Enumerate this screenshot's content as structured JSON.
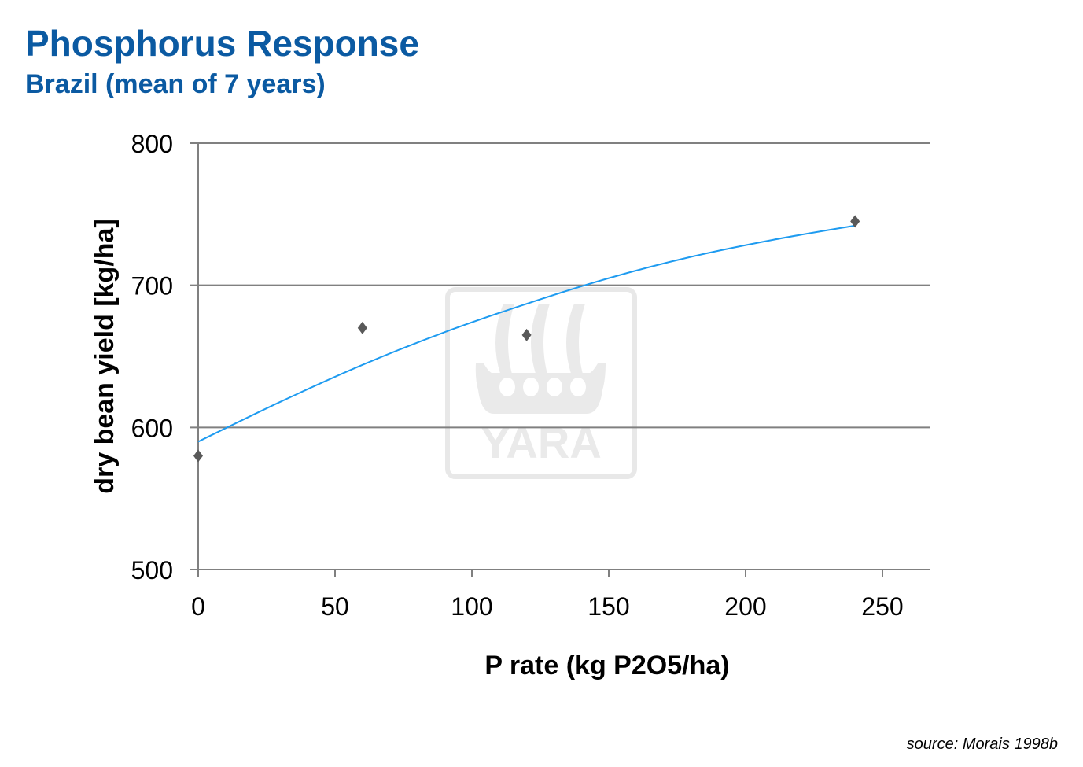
{
  "header": {
    "title": "Phosphorus Response",
    "subtitle": "Brazil (mean of 7 years)"
  },
  "footer": {
    "source": "source: Morais 1998b"
  },
  "watermark": {
    "text": "YARA"
  },
  "chart_data": {
    "type": "scatter",
    "title": "Phosphorus Response",
    "subtitle": "Brazil (mean of 7 years)",
    "xlabel": "P rate (kg P2O5/ha)",
    "ylabel": "dry bean yield [kg/ha]",
    "xlim": [
      0,
      250
    ],
    "ylim": [
      500,
      800
    ],
    "xticks": [
      "0",
      "50",
      "100",
      "150",
      "200",
      "250"
    ],
    "yticks": [
      "500",
      "600",
      "700",
      "800"
    ],
    "grid": "horizontal",
    "marker": "diamond",
    "colors": {
      "points": "#595959",
      "trendline": "#1e9bf0",
      "title": "#0b5aa2"
    },
    "points": [
      {
        "x": 0,
        "y": 580
      },
      {
        "x": 60,
        "y": 670
      },
      {
        "x": 120,
        "y": 665
      },
      {
        "x": 240,
        "y": 745
      }
    ],
    "trendline": {
      "type": "polynomial",
      "x": [
        0,
        30,
        60,
        90,
        120,
        150,
        180,
        210,
        240
      ],
      "y": [
        590,
        618,
        644,
        667,
        687,
        705,
        720,
        732,
        742
      ]
    }
  }
}
